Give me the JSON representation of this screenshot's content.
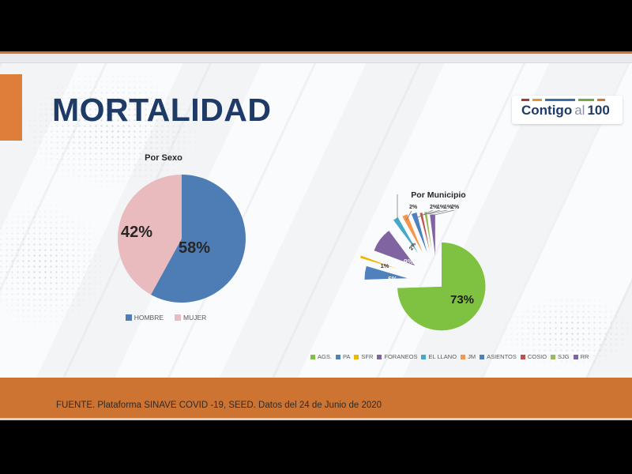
{
  "slide": {
    "title": "MORTALIDAD",
    "footer": "FUENTE. Plataforma SINAVE COVID -19, SEED. Datos del 24 de Junio de 2020"
  },
  "logo": {
    "part1": "Contigo",
    "part2": "al",
    "part3": "100",
    "dash_colors": [
      "#9e3b3b",
      "#dd9933",
      "#3c6ea5",
      "#70a84b",
      "#cc7a33"
    ]
  },
  "theme": {
    "accent-orange": "#cd7433",
    "title-navy": "#1e3a66",
    "black-band": "#000000",
    "gray-bar": "#e8eaec",
    "slide-bg": "#fafbfc",
    "footer-text": "#2e2a26",
    "legend-text": "#595959",
    "label-dark": "#262626"
  },
  "chart_data": [
    {
      "type": "pie",
      "title": "Por Sexo",
      "labels": [
        "HOMBRE",
        "MUJER"
      ],
      "values": [
        58,
        42
      ],
      "value_labels": [
        "58%",
        "42%"
      ],
      "colors": [
        "#4e7db5",
        "#e9babe"
      ],
      "legend_position": "bottom",
      "start_angle_deg": 0,
      "direction": "clockwise"
    },
    {
      "type": "pie",
      "title": "Por Municipio",
      "labels": [
        "AGS.",
        "PA",
        "SFR",
        "FORANEOS",
        "EL LLANO",
        "JM",
        "ASIENTOS",
        "COSIO",
        "SJG",
        "RR"
      ],
      "values": [
        73,
        5,
        1,
        9,
        2,
        2,
        2,
        1,
        1,
        2
      ],
      "value_labels": [
        "73%",
        "5%",
        "1%",
        "9%",
        "2%",
        "2%",
        "2%",
        "1%",
        "1%",
        "2%"
      ],
      "colors": [
        "#7fc241",
        "#4f81bd",
        "#f2b500",
        "#8064a2",
        "#45a9c9",
        "#f79646",
        "#4f81bd",
        "#c0504d",
        "#9bbb59",
        "#8064a2"
      ],
      "exploded": true,
      "legend_position": "bottom",
      "start_angle_deg": 0,
      "direction": "clockwise"
    }
  ]
}
